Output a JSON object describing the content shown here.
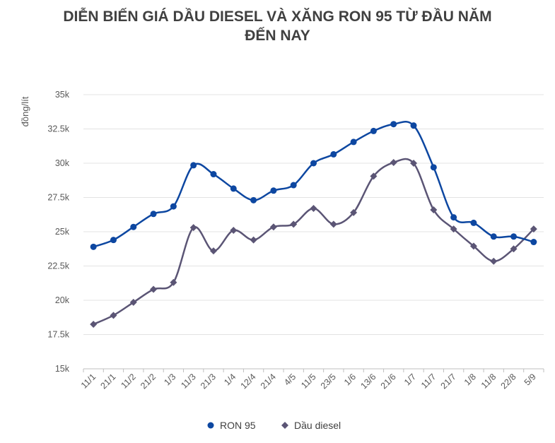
{
  "title_lines": [
    "DIỄN BIẾN GIÁ DẦU DIESEL VÀ XĂNG RON 95 TỪ ĐẦU NĂM",
    "ĐẾN NAY"
  ],
  "chart_data": {
    "type": "line",
    "title": "DIỄN BIẾN GIÁ DẦU DIESEL VÀ XĂNG RON 95 TỪ ĐẦU NĂM ĐẾN NAY",
    "xlabel": "",
    "ylabel": "đồng/lít",
    "ylim": [
      15000,
      35000
    ],
    "yticks": [
      15000,
      17500,
      20000,
      22500,
      25000,
      27500,
      30000,
      32500,
      35000
    ],
    "ytick_labels": [
      "15k",
      "17.5k",
      "20k",
      "22.5k",
      "25k",
      "27.5k",
      "30k",
      "32.5k",
      "35k"
    ],
    "grid": true,
    "legend_position": "bottom",
    "categories": [
      "11/1",
      "21/1",
      "11/2",
      "21/2",
      "1/3",
      "11/3",
      "21/3",
      "1/4",
      "12/4",
      "21/4",
      "4/5",
      "11/5",
      "23/5",
      "1/6",
      "13/6",
      "21/6",
      "1/7",
      "11/7",
      "21/7",
      "1/8",
      "11/8",
      "22/8",
      "5/9"
    ],
    "series": [
      {
        "name": "RON 95",
        "color": "#0d47a1",
        "marker": "circle",
        "values": [
          23900,
          24400,
          25350,
          26300,
          26850,
          29850,
          29200,
          28150,
          27300,
          28000,
          28400,
          30000,
          30650,
          31550,
          32350,
          32850,
          32750,
          29700,
          26050,
          25650,
          24650,
          24650,
          24250
        ]
      },
      {
        "name": "Dầu diesel",
        "color": "#5b5575",
        "marker": "diamond",
        "values": [
          18250,
          18900,
          19850,
          20800,
          21300,
          25300,
          23600,
          25100,
          24400,
          25350,
          25550,
          26700,
          25550,
          26400,
          29050,
          30050,
          30000,
          26600,
          25200,
          23950,
          22850,
          23750,
          25200
        ]
      }
    ]
  }
}
